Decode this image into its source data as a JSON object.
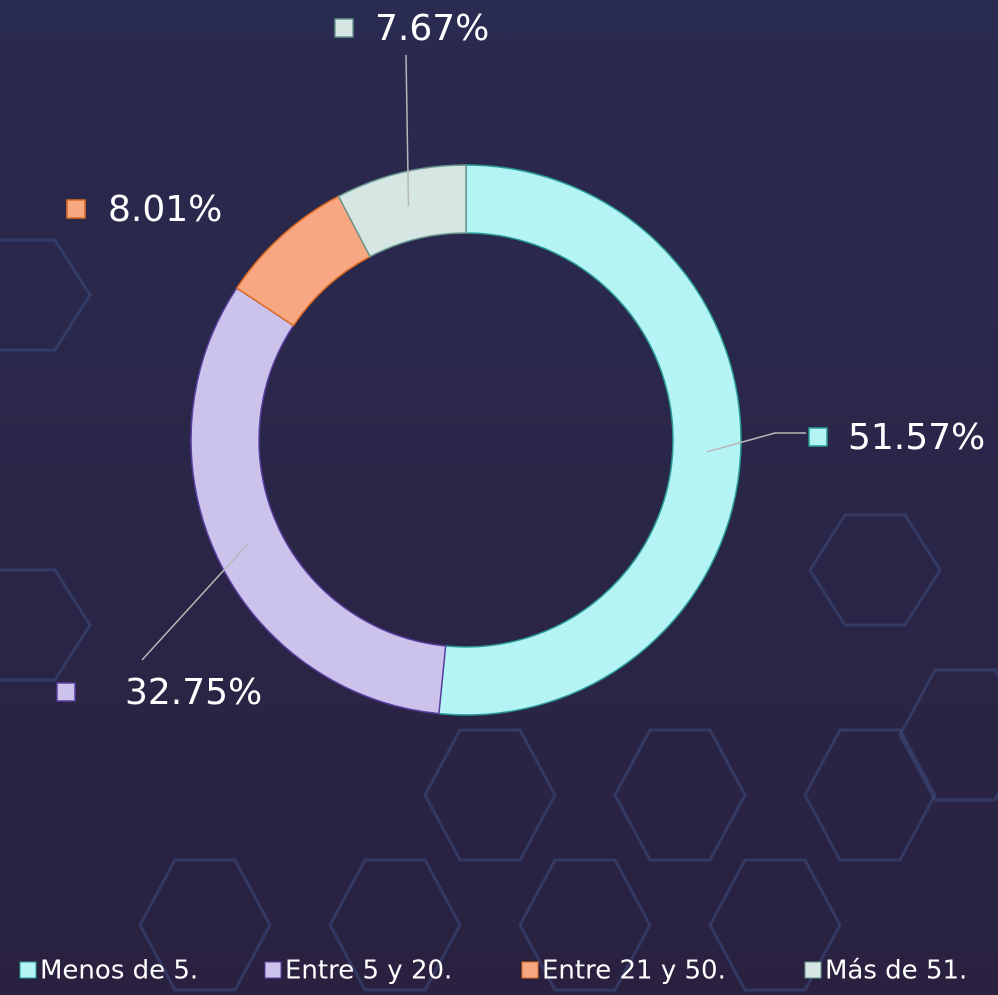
{
  "chart_data": {
    "type": "donut",
    "categories": [
      "Menos de 5.",
      "Entre 5 y 20.",
      "Entre 21 y 50.",
      "Más de 51."
    ],
    "values": [
      51.57,
      32.75,
      8.01,
      7.67
    ],
    "value_labels": [
      "51.57%",
      "32.75%",
      "8.01%",
      "7.67%"
    ],
    "colors": [
      "#b4f4f4",
      "#cbc3ec",
      "#f7a882",
      "#d5e6e3"
    ],
    "legend": "bottom"
  }
}
